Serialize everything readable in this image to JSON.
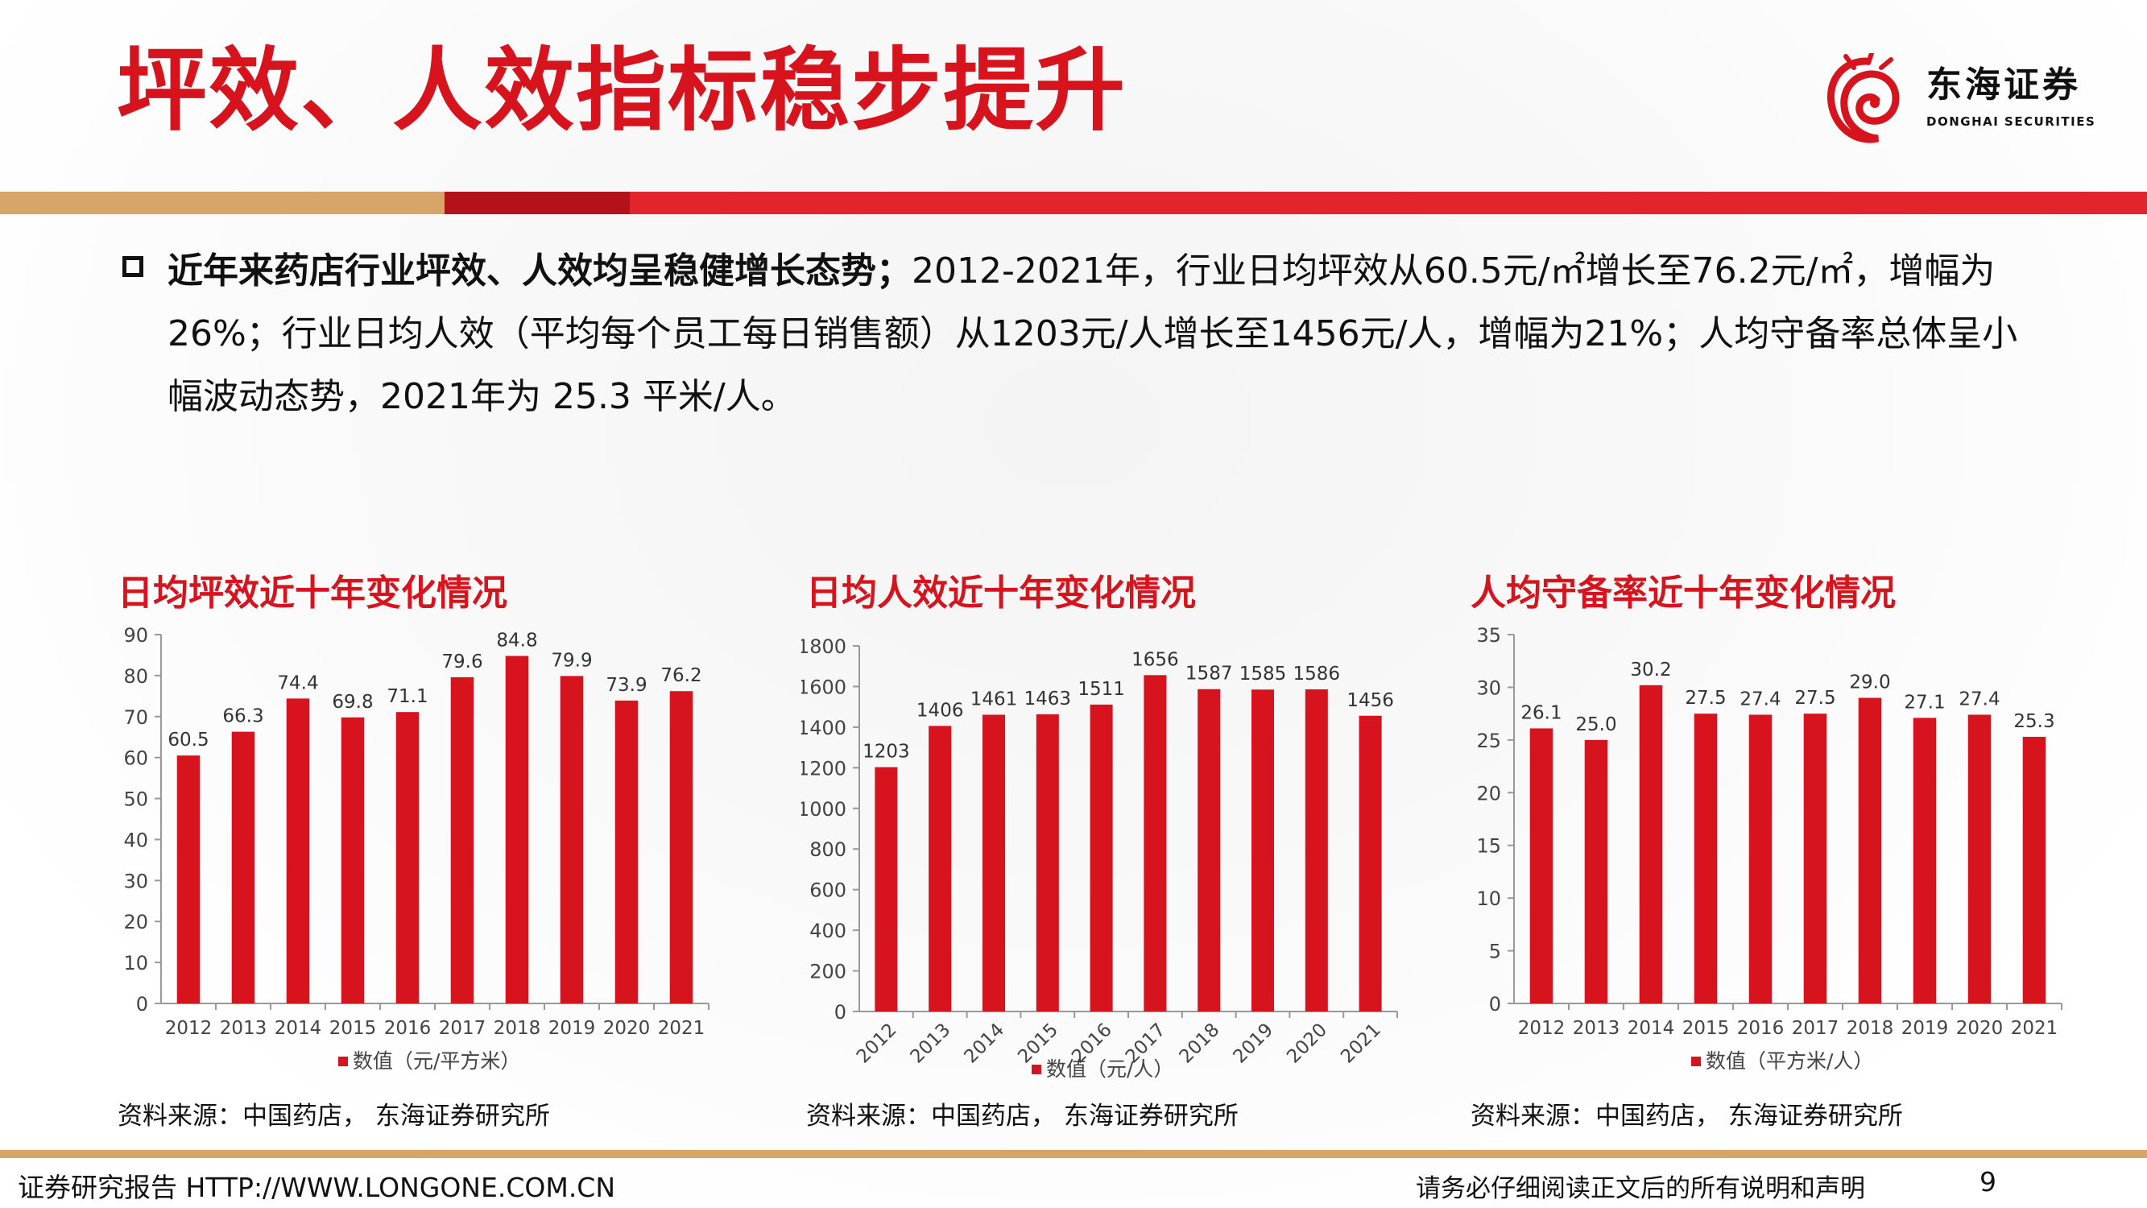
{
  "title": "坪效、人效指标稳步提升",
  "logo": {
    "name_cn": "东海证券",
    "name_en": "DONGHAI SECURITIES"
  },
  "bullet": {
    "bold": "近年来药店行业坪效、人效均呈稳健增长态势；",
    "text": "2012-2021年，行业日均坪效从60.5元/㎡增长至76.2元/㎡，增幅为26%；行业日均人效（平均每个员工每日销售额）从1203元/人增长至1456元/人，增幅为21%；人均守备率总体呈小幅波动态势，2021年为 25.3 平米/人。"
  },
  "colors": {
    "accent": "#d7141e",
    "bar": "#d7141e",
    "gold": "#d8a468"
  },
  "chart_data": [
    {
      "type": "bar",
      "title": "日均坪效近十年变化情况",
      "categories": [
        "2012",
        "2013",
        "2014",
        "2015",
        "2016",
        "2017",
        "2018",
        "2019",
        "2020",
        "2021"
      ],
      "series": [
        {
          "name": "数值（元/平方米）",
          "values": [
            60.5,
            66.3,
            74.4,
            69.8,
            71.1,
            79.6,
            84.8,
            79.9,
            73.9,
            76.2
          ]
        }
      ],
      "labels": [
        "60.5",
        "66.3",
        "74.4",
        "69.8",
        "71.1",
        "79.6",
        "84.8",
        "79.9",
        "73.9",
        "76.2"
      ],
      "ylim": [
        0,
        90
      ],
      "yticks": [
        0,
        10,
        20,
        30,
        40,
        50,
        60,
        70,
        80,
        90
      ],
      "rotate_x": false,
      "legend_position": "bottom",
      "source": "资料来源：中国药店， 东海证券研究所"
    },
    {
      "type": "bar",
      "title": "日均人效近十年变化情况",
      "categories": [
        "2012",
        "2013",
        "2014",
        "2015",
        "2016",
        "2017",
        "2018",
        "2019",
        "2020",
        "2021"
      ],
      "series": [
        {
          "name": "数值（元/人）",
          "values": [
            1203,
            1406,
            1461,
            1463,
            1511,
            1656,
            1587,
            1585,
            1586,
            1456
          ]
        }
      ],
      "labels": [
        "1203",
        "1406",
        "1461",
        "1463",
        "1511",
        "1656",
        "1587",
        "1585",
        "1586",
        "1456"
      ],
      "ylim": [
        0,
        1800
      ],
      "yticks": [
        0,
        200,
        400,
        600,
        800,
        1000,
        1200,
        1400,
        1600,
        1800
      ],
      "rotate_x": true,
      "legend_position": "bottom",
      "source": "资料来源：中国药店， 东海证券研究所"
    },
    {
      "type": "bar",
      "title": "人均守备率近十年变化情况",
      "categories": [
        "2012",
        "2013",
        "2014",
        "2015",
        "2016",
        "2017",
        "2018",
        "2019",
        "2020",
        "2021"
      ],
      "series": [
        {
          "name": "数值（平方米/人）",
          "values": [
            26.1,
            25.0,
            30.2,
            27.5,
            27.4,
            27.5,
            29.0,
            27.1,
            27.4,
            25.3
          ]
        }
      ],
      "labels": [
        "26.1",
        "25.0",
        "30.2",
        "27.5",
        "27.4",
        "27.5",
        "29.0",
        "27.1",
        "27.4",
        "25.3"
      ],
      "ylim": [
        0,
        35
      ],
      "yticks": [
        0,
        5,
        10,
        15,
        20,
        25,
        30,
        35
      ],
      "rotate_x": false,
      "legend_position": "bottom",
      "source": "资料来源：中国药店， 东海证券研究所"
    }
  ],
  "footer": {
    "left": "证券研究报告 HTTP://WWW.LONGONE.COM.CN",
    "right": "请务必仔细阅读正文后的所有说明和声明",
    "page": "9"
  }
}
